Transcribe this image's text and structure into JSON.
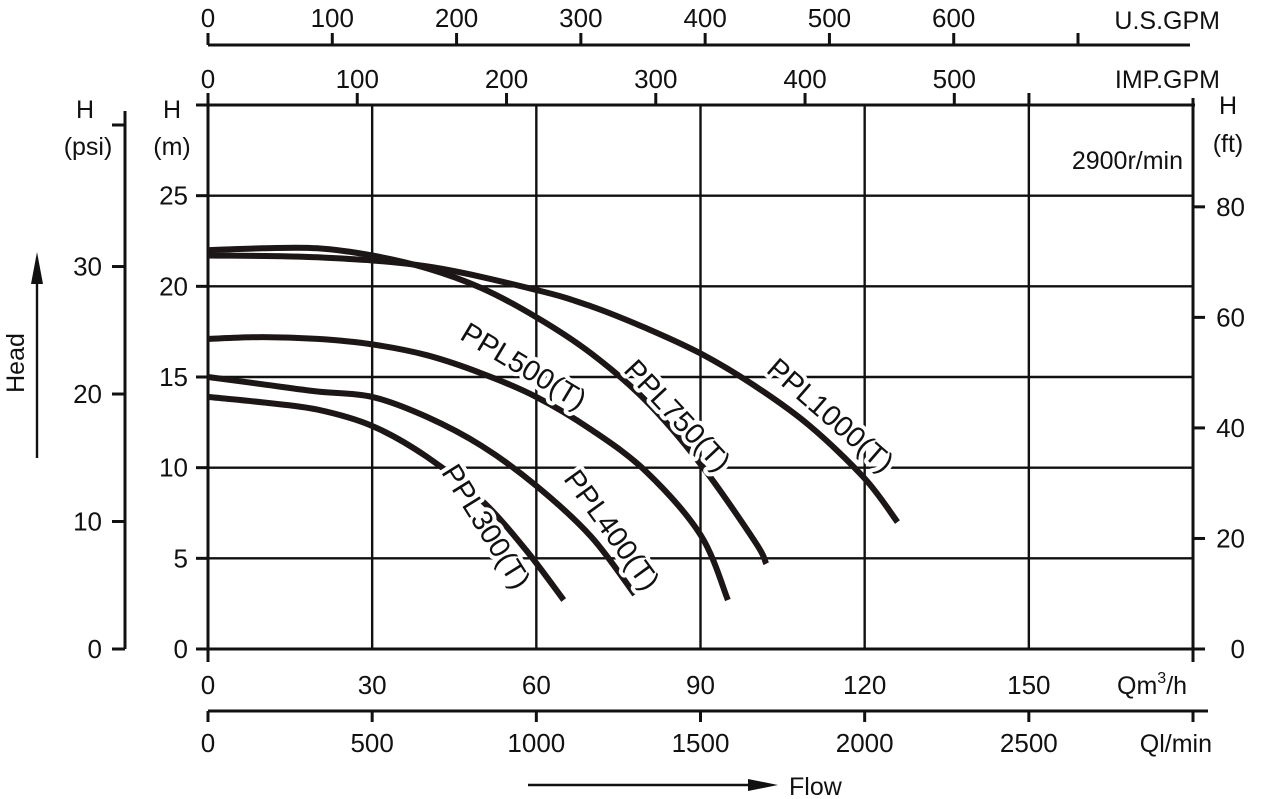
{
  "chart_data": {
    "type": "line",
    "title": "",
    "annotation": "2900r/min",
    "grid": true,
    "colors": {
      "curve": "#1c1716",
      "axis": "#111111",
      "background": "#ffffff"
    },
    "x_axes": {
      "primary": {
        "unit": "Qm³/h",
        "unit_base": "Qm",
        "unit_sup": "3",
        "unit_tail": "/h",
        "range": [
          0,
          180
        ],
        "ticks": [
          "0",
          "30",
          "60",
          "90",
          "120",
          "150"
        ]
      },
      "secondary": {
        "unit": "Ql/min",
        "range": [
          0,
          3000
        ],
        "ticks": [
          "0",
          "500",
          "1000",
          "1500",
          "2000",
          "2500"
        ]
      },
      "imp_gpm": {
        "unit": "IMP.GPM",
        "ticks": [
          "0",
          "100",
          "200",
          "300",
          "400",
          "500"
        ]
      },
      "us_gpm": {
        "unit": "U.S.GPM",
        "ticks": [
          "0",
          "100",
          "200",
          "300",
          "400",
          "500",
          "600"
        ]
      },
      "flow_label": "Flow"
    },
    "y_axes": {
      "left_m": {
        "title": [
          "H",
          "(m)"
        ],
        "range": [
          0,
          30
        ],
        "ticks": [
          "0",
          "5",
          "10",
          "15",
          "20",
          "25"
        ]
      },
      "left_psi": {
        "title": [
          "H",
          "(psi)"
        ],
        "ticks": [
          "0",
          "10",
          "20",
          "30"
        ],
        "head_label": "Head"
      },
      "right_ft": {
        "title": [
          "H",
          "(ft)"
        ],
        "ticks": [
          "0",
          "20",
          "40",
          "60",
          "80"
        ]
      }
    },
    "series": [
      {
        "name": "PPL300(T)",
        "x": [
          0,
          10,
          20,
          30,
          40,
          50,
          58,
          65
        ],
        "y": [
          13.9,
          13.6,
          13.2,
          12.3,
          10.6,
          8.2,
          5.5,
          2.7
        ]
      },
      {
        "name": "PPL400(T)",
        "x": [
          0,
          10,
          20,
          30,
          40,
          50,
          60,
          70,
          78
        ],
        "y": [
          15.0,
          14.6,
          14.2,
          13.9,
          12.8,
          11.2,
          9.0,
          6.2,
          3.0
        ]
      },
      {
        "name": "PPL500(T)",
        "x": [
          0,
          10,
          20,
          30,
          40,
          50,
          60,
          70,
          80,
          90,
          95
        ],
        "y": [
          17.1,
          17.2,
          17.1,
          16.8,
          16.2,
          15.2,
          13.9,
          12.1,
          9.8,
          6.3,
          2.7
        ]
      },
      {
        "name": "PPL750(T)",
        "x": [
          0,
          10,
          20,
          30,
          40,
          50,
          60,
          70,
          80,
          90,
          100,
          102
        ],
        "y": [
          22.0,
          22.1,
          22.1,
          21.7,
          21.0,
          19.9,
          18.3,
          16.3,
          13.7,
          10.2,
          5.9,
          4.7
        ]
      },
      {
        "name": "PPL1000(T)",
        "x": [
          0,
          20,
          40,
          60,
          70,
          80,
          90,
          100,
          110,
          120,
          126
        ],
        "y": [
          21.7,
          21.6,
          21.1,
          19.8,
          18.9,
          17.7,
          16.3,
          14.5,
          12.3,
          9.4,
          7.0
        ]
      }
    ],
    "curve_labels": [
      {
        "series": "PPL500(T)",
        "text": "PPL500(T)",
        "at": [
          57.5,
          15.5
        ],
        "rotate": 31
      },
      {
        "series": "PPL750(T)",
        "text": "PPL750(T)",
        "at": [
          85.5,
          12.8
        ],
        "rotate": 47
      },
      {
        "series": "PPL1000(T)",
        "text": "PPL1000(T)",
        "at": [
          113.5,
          12.8
        ],
        "rotate": 41
      },
      {
        "series": "PPL400(T)",
        "text": "PPL400(T)",
        "at": [
          73.5,
          6.5
        ],
        "rotate": 54
      },
      {
        "series": "PPL300(T)",
        "text": "PPL300(T)",
        "at": [
          50.5,
          6.7
        ],
        "rotate": 58
      }
    ]
  }
}
